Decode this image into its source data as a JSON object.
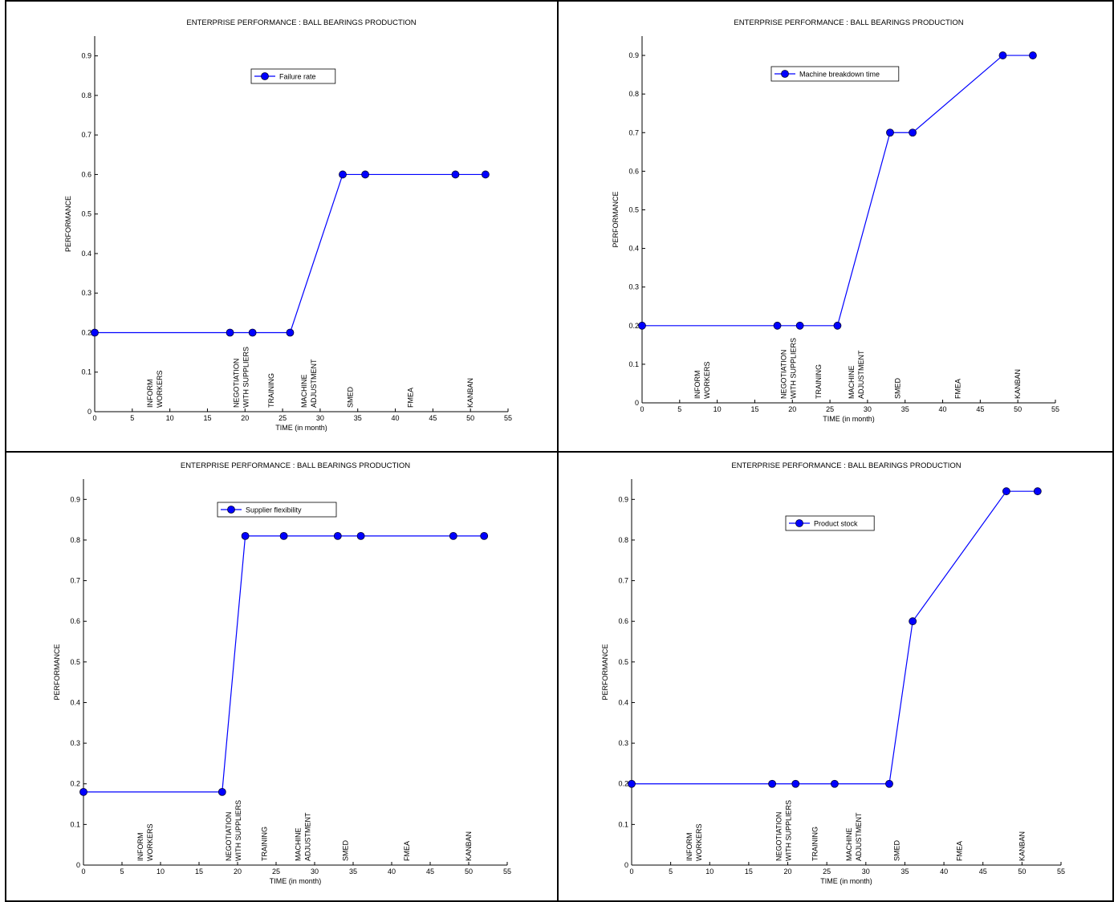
{
  "chart_data": [
    {
      "type": "line",
      "title": "ENTERPRISE PERFORMANCE : BALL BEARINGS PRODUCTION",
      "xlabel": "TIME (in month)",
      "ylabel": "PERFORMANCE",
      "xlim": [
        0,
        55
      ],
      "ylim": [
        0,
        0.95
      ],
      "xticks": [
        0,
        5,
        10,
        15,
        20,
        25,
        30,
        35,
        40,
        45,
        50,
        55
      ],
      "yticks": [
        0,
        0.1,
        0.2,
        0.3,
        0.4,
        0.5,
        0.6,
        0.7,
        0.8,
        0.9
      ],
      "ytick_labels": [
        "0",
        "0.1",
        "0.2",
        "0.3",
        "0.4",
        "0.5",
        "0.6",
        "0.7",
        "0.8",
        "0.9"
      ],
      "grid": false,
      "legend_position": "top-center",
      "series": [
        {
          "name": "Failure rate",
          "color": "#0000ff",
          "x": [
            0,
            18,
            21,
            26,
            33,
            36,
            48,
            52
          ],
          "y": [
            0.2,
            0.2,
            0.2,
            0.2,
            0.6,
            0.6,
            0.6,
            0.6
          ]
        }
      ]
    },
    {
      "type": "line",
      "title": "ENTERPRISE PERFORMANCE : BALL BEARINGS PRODUCTION",
      "xlabel": "TIME (in month)",
      "ylabel": "PERFORMANCE",
      "xlim": [
        0,
        55
      ],
      "ylim": [
        0,
        0.95
      ],
      "xticks": [
        0,
        5,
        10,
        15,
        20,
        25,
        30,
        35,
        40,
        45,
        50,
        55
      ],
      "yticks": [
        0,
        0.1,
        0.2,
        0.3,
        0.4,
        0.5,
        0.6,
        0.7,
        0.8,
        0.9
      ],
      "ytick_labels": [
        "0",
        "0.1",
        "0.2",
        "0.3",
        "0.4",
        "0.5",
        "0.6",
        "0.7",
        "0.8",
        "0.9"
      ],
      "grid": false,
      "legend_position": "top-center",
      "series": [
        {
          "name": "Machine breakdown time",
          "color": "#0000ff",
          "x": [
            0,
            18,
            21,
            26,
            33,
            36,
            48,
            52
          ],
          "y": [
            0.2,
            0.2,
            0.2,
            0.2,
            0.7,
            0.7,
            0.9,
            0.9
          ]
        }
      ]
    },
    {
      "type": "line",
      "title": "ENTERPRISE PERFORMANCE : BALL BEARINGS PRODUCTION",
      "xlabel": "TIME (in month)",
      "ylabel": "PERFORMANCE",
      "xlim": [
        0,
        55
      ],
      "ylim": [
        0,
        0.95
      ],
      "xticks": [
        0,
        5,
        10,
        15,
        20,
        25,
        30,
        35,
        40,
        45,
        50,
        55
      ],
      "yticks": [
        0,
        0.1,
        0.2,
        0.3,
        0.4,
        0.5,
        0.6,
        0.7,
        0.8,
        0.9
      ],
      "ytick_labels": [
        "0",
        "0.1",
        "0.2",
        "0.3",
        "0.4",
        "0.5",
        "0.6",
        "0.7",
        "0.8",
        "0.9"
      ],
      "grid": false,
      "legend_position": "top-center",
      "series": [
        {
          "name": "Supplier flexibility",
          "color": "#0000ff",
          "x": [
            0,
            18,
            21,
            26,
            33,
            36,
            48,
            52
          ],
          "y": [
            0.18,
            0.18,
            0.81,
            0.81,
            0.81,
            0.81,
            0.81,
            0.81
          ]
        }
      ]
    },
    {
      "type": "line",
      "title": "ENTERPRISE PERFORMANCE : BALL BEARINGS PRODUCTION",
      "xlabel": "TIME (in month)",
      "ylabel": "PERFORMANCE",
      "xlim": [
        0,
        55
      ],
      "ylim": [
        0,
        0.95
      ],
      "xticks": [
        0,
        5,
        10,
        15,
        20,
        25,
        30,
        35,
        40,
        45,
        50,
        55
      ],
      "yticks": [
        0,
        0.1,
        0.2,
        0.3,
        0.4,
        0.5,
        0.6,
        0.7,
        0.8,
        0.9
      ],
      "ytick_labels": [
        "0",
        "0.1",
        "0.2",
        "0.3",
        "0.4",
        "0.5",
        "0.6",
        "0.7",
        "0.8",
        "0.9"
      ],
      "grid": false,
      "legend_position": "top-center",
      "series": [
        {
          "name": "Product stock",
          "color": "#0000ff",
          "x": [
            0,
            18,
            21,
            26,
            33,
            36,
            48,
            52
          ],
          "y": [
            0.2,
            0.2,
            0.2,
            0.2,
            0.2,
            0.6,
            0.92,
            0.92
          ]
        }
      ]
    }
  ],
  "annotations": [
    {
      "lines": [
        "INFORM",
        "WORKERS"
      ],
      "x": 8
    },
    {
      "lines": [
        "NEGOTIATION",
        "WITH SUPPLIERS"
      ],
      "x": 19.5
    },
    {
      "lines": [
        "TRAINING"
      ],
      "x": 23.5
    },
    {
      "lines": [
        "MACHINE",
        "ADJUSTMENT"
      ],
      "x": 28.5
    },
    {
      "lines": [
        "SMED"
      ],
      "x": 34
    },
    {
      "lines": [
        "FMEA"
      ],
      "x": 42
    },
    {
      "lines": [
        "KANBAN"
      ],
      "x": 50
    }
  ]
}
